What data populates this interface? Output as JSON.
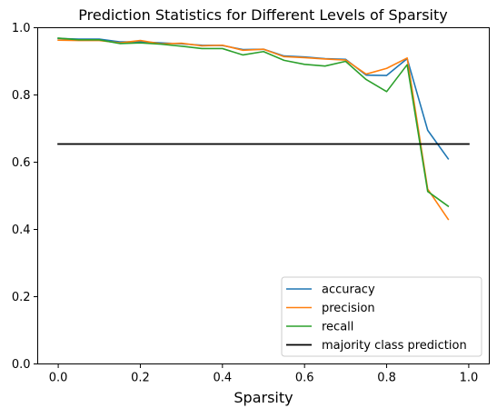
{
  "chart_data": {
    "type": "line",
    "title": "Prediction Statistics for Different Levels of Sparsity",
    "xlabel": "Sparsity",
    "ylabel": "",
    "xlim": [
      -0.05,
      1.05
    ],
    "ylim": [
      0.0,
      1.0
    ],
    "xticks": [
      0.0,
      0.2,
      0.4,
      0.6,
      0.8,
      1.0
    ],
    "xtick_labels": [
      "0.0",
      "0.2",
      "0.4",
      "0.6",
      "0.8",
      "1.0"
    ],
    "yticks": [
      0.0,
      0.2,
      0.4,
      0.6,
      0.8,
      1.0
    ],
    "ytick_labels": [
      "0.0",
      "0.2",
      "0.4",
      "0.6",
      "0.8",
      "1.0"
    ],
    "grid": false,
    "legend_position": "lower-right",
    "x": [
      0.0,
      0.05,
      0.1,
      0.15,
      0.2,
      0.25,
      0.3,
      0.35,
      0.4,
      0.45,
      0.5,
      0.55,
      0.6,
      0.65,
      0.7,
      0.75,
      0.8,
      0.85,
      0.9,
      0.95
    ],
    "series": [
      {
        "name": "accuracy",
        "color": "#1f77b4",
        "values": [
          0.968,
          0.966,
          0.966,
          0.958,
          0.958,
          0.955,
          0.952,
          0.948,
          0.947,
          0.935,
          0.936,
          0.916,
          0.913,
          0.908,
          0.906,
          0.859,
          0.858,
          0.908,
          0.695,
          0.61
        ]
      },
      {
        "name": "precision",
        "color": "#ff7f0e",
        "values": [
          0.963,
          0.962,
          0.962,
          0.955,
          0.962,
          0.952,
          0.954,
          0.946,
          0.948,
          0.933,
          0.936,
          0.914,
          0.911,
          0.907,
          0.904,
          0.862,
          0.879,
          0.91,
          0.52,
          0.43
        ]
      },
      {
        "name": "recall",
        "color": "#2ca02c",
        "values": [
          0.969,
          0.964,
          0.964,
          0.953,
          0.955,
          0.951,
          0.945,
          0.938,
          0.938,
          0.919,
          0.929,
          0.903,
          0.891,
          0.886,
          0.9,
          0.846,
          0.81,
          0.89,
          0.513,
          0.469
        ]
      },
      {
        "name": "majority class prediction",
        "color": "#000000",
        "x": [
          0.0,
          1.0
        ],
        "values": [
          0.654,
          0.654
        ]
      }
    ]
  }
}
